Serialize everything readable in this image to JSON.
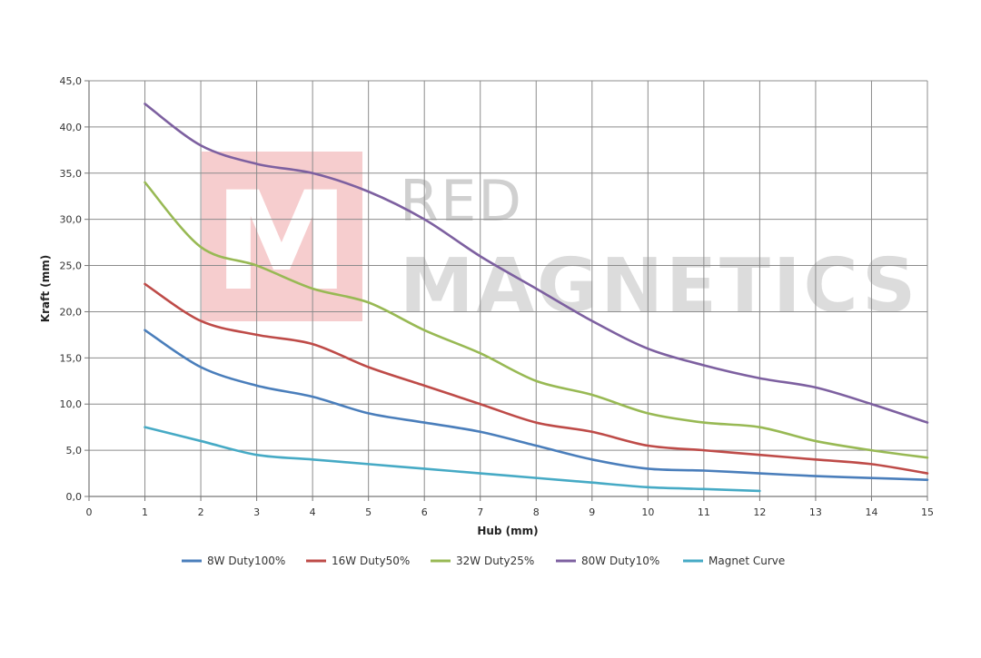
{
  "chart_data": {
    "type": "line",
    "title": "",
    "xlabel": "Hub (mm)",
    "ylabel": "Kraft (mm)",
    "xlim": [
      0,
      15
    ],
    "ylim": [
      0,
      45
    ],
    "x_ticks": [
      "0",
      "1",
      "2",
      "3",
      "4",
      "5",
      "6",
      "7",
      "8",
      "9",
      "10",
      "11",
      "12",
      "13",
      "14",
      "15"
    ],
    "y_ticks": [
      "0,0",
      "5,0",
      "10,0",
      "15,0",
      "20,0",
      "25,0",
      "30,0",
      "35,0",
      "40,0",
      "45,0"
    ],
    "grid": true,
    "legend_position": "bottom",
    "series": [
      {
        "name": "8W Duty100%",
        "color": "#4a7ebb",
        "x": [
          1,
          2,
          3,
          4,
          5,
          6,
          7,
          8,
          9,
          10,
          11,
          12,
          13,
          14,
          15
        ],
        "values": [
          18.0,
          14.0,
          12.0,
          10.8,
          9.0,
          8.0,
          7.0,
          5.5,
          4.0,
          3.0,
          2.8,
          2.5,
          2.2,
          2.0,
          1.8
        ]
      },
      {
        "name": "16W Duty50%",
        "color": "#be4b48",
        "x": [
          1,
          2,
          3,
          4,
          5,
          6,
          7,
          8,
          9,
          10,
          11,
          12,
          13,
          14,
          15
        ],
        "values": [
          23.0,
          19.0,
          17.5,
          16.5,
          14.0,
          12.0,
          10.0,
          8.0,
          7.0,
          5.5,
          5.0,
          4.5,
          4.0,
          3.5,
          2.5
        ]
      },
      {
        "name": "32W Duty25%",
        "color": "#98b954",
        "x": [
          1,
          2,
          3,
          4,
          5,
          6,
          7,
          8,
          9,
          10,
          11,
          12,
          13,
          14,
          15
        ],
        "values": [
          34.0,
          27.0,
          25.0,
          22.5,
          21.0,
          18.0,
          15.5,
          12.5,
          11.0,
          9.0,
          8.0,
          7.5,
          6.0,
          5.0,
          4.2
        ]
      },
      {
        "name": "80W Duty10%",
        "color": "#7d60a0",
        "x": [
          1,
          2,
          3,
          4,
          5,
          6,
          7,
          8,
          9,
          10,
          11,
          12,
          13,
          14,
          15
        ],
        "values": [
          42.5,
          38.0,
          36.0,
          35.0,
          33.0,
          30.0,
          26.0,
          22.5,
          19.0,
          16.0,
          14.2,
          12.8,
          11.8,
          10.0,
          8.0
        ]
      },
      {
        "name": "Magnet Curve",
        "color": "#46aac5",
        "x": [
          1,
          2,
          3,
          4,
          5,
          6,
          7,
          8,
          9,
          10,
          11,
          12
        ],
        "values": [
          7.5,
          6.0,
          4.5,
          4.0,
          3.5,
          3.0,
          2.5,
          2.0,
          1.5,
          1.0,
          0.8,
          0.6
        ]
      }
    ]
  },
  "watermark": {
    "logo_letter": "M",
    "line1": "RED",
    "line2": "MAGNETICS",
    "logo_color": "#f4c4c6",
    "text_color": "#d6d6d6"
  }
}
